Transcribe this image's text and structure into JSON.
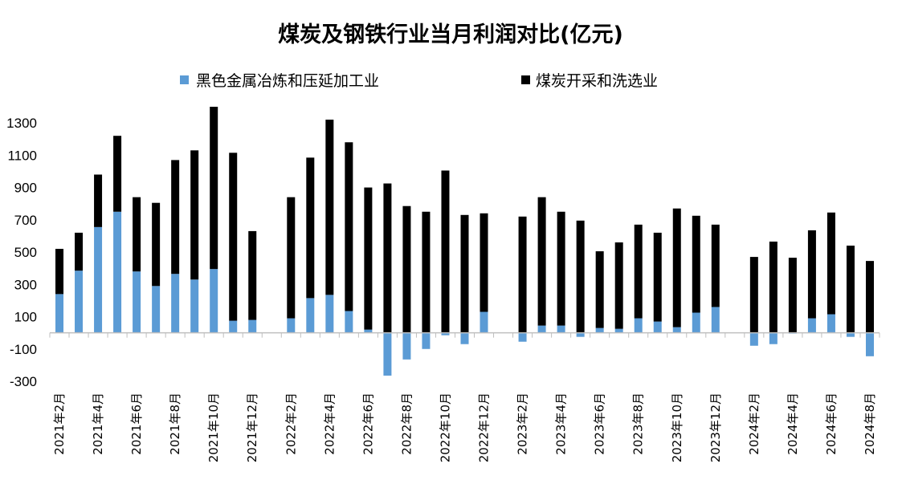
{
  "chart_data": {
    "type": "bar",
    "stacked": true,
    "title": "煤炭及钢铁行业当月利润对比(亿元)",
    "xlabel": "",
    "ylabel": "",
    "ylim": [
      -300,
      1400
    ],
    "yticks": [
      -300,
      -100,
      100,
      300,
      500,
      700,
      900,
      1100,
      1300
    ],
    "legend_position": "top",
    "grid": false,
    "categories": [
      "2021年2月",
      "2021年3月",
      "2021年4月",
      "2021年5月",
      "2021年6月",
      "2021年7月",
      "2021年8月",
      "2021年9月",
      "2021年10月",
      "2021年11月",
      "2021年12月",
      "2022年1月",
      "2022年2月",
      "2022年3月",
      "2022年4月",
      "2022年5月",
      "2022年6月",
      "2022年7月",
      "2022年8月",
      "2022年9月",
      "2022年10月",
      "2022年11月",
      "2022年12月",
      "2023年1月",
      "2023年2月",
      "2023年3月",
      "2023年4月",
      "2023年5月",
      "2023年6月",
      "2023年7月",
      "2023年8月",
      "2023年9月",
      "2023年10月",
      "2023年11月",
      "2023年12月",
      "2024年1月",
      "2024年2月",
      "2024年3月",
      "2024年4月",
      "2024年5月",
      "2024年6月",
      "2024年7月",
      "2024年8月"
    ],
    "xtick_labels": [
      "2021年2月",
      "",
      "2021年4月",
      "",
      "2021年6月",
      "",
      "2021年8月",
      "",
      "2021年10月",
      "",
      "2021年12月",
      "",
      "2022年2月",
      "",
      "2022年4月",
      "",
      "2022年6月",
      "",
      "2022年8月",
      "",
      "2022年10月",
      "",
      "2022年12月",
      "",
      "2023年2月",
      "",
      "2023年4月",
      "",
      "2023年6月",
      "",
      "2023年8月",
      "",
      "2023年10月",
      "",
      "2023年12月",
      "",
      "2024年2月",
      "",
      "2024年4月",
      "",
      "2024年6月",
      "",
      "2024年8月"
    ],
    "series": [
      {
        "name": "黑色金属冶炼和压延加工业",
        "color": "#5b9bd5",
        "values": [
          240,
          385,
          655,
          750,
          380,
          290,
          365,
          330,
          395,
          75,
          80,
          null,
          90,
          215,
          235,
          135,
          20,
          -265,
          -165,
          -100,
          -15,
          -70,
          130,
          null,
          -55,
          45,
          45,
          -25,
          30,
          25,
          90,
          70,
          35,
          125,
          160,
          null,
          -80,
          -70,
          -5,
          90,
          115,
          -25,
          -145
        ]
      },
      {
        "name": "煤炭开采和洗选业",
        "color": "#000000",
        "values": [
          280,
          235,
          325,
          470,
          460,
          515,
          705,
          800,
          1005,
          1040,
          550,
          null,
          750,
          870,
          1085,
          1045,
          880,
          925,
          785,
          750,
          1005,
          730,
          610,
          null,
          720,
          795,
          705,
          695,
          475,
          535,
          580,
          550,
          735,
          600,
          510,
          null,
          470,
          565,
          465,
          545,
          630,
          540,
          445
        ]
      }
    ]
  }
}
